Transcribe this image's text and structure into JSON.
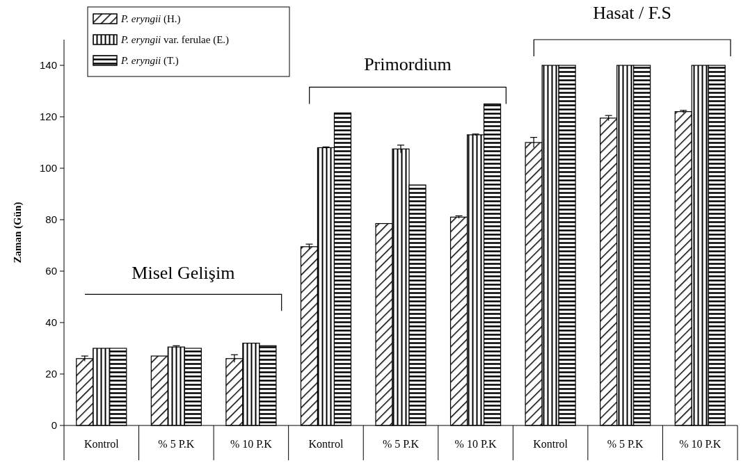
{
  "chart_data": {
    "type": "bar",
    "ylabel": "Zaman (Gün)",
    "categories": [
      "Kontrol",
      "% 5 P.K",
      "% 10 P.K",
      "Kontrol",
      "% 5 P.K",
      "% 10 P.K",
      "Kontrol",
      "% 5 P.K",
      "% 10 P.K"
    ],
    "series": [
      {
        "name": "P. eryngii (H.)",
        "color": "#000000",
        "values": [
          26,
          27,
          26,
          69.5,
          78.5,
          81,
          110,
          119.5,
          122
        ],
        "errors": [
          1,
          null,
          1.5,
          1,
          null,
          0.5,
          2,
          1,
          0.5
        ]
      },
      {
        "name": "P. eryngii var. ferulae (E.)",
        "color": "#000000",
        "values": [
          30,
          30.5,
          32,
          108,
          107.5,
          113,
          140,
          140,
          140
        ],
        "errors": [
          null,
          0.5,
          null,
          0.3,
          1.5,
          0.3,
          null,
          null,
          null
        ]
      },
      {
        "name": "P. eryngii (T.)",
        "color": "#000000",
        "values": [
          30,
          30,
          31,
          121.5,
          93.5,
          125,
          140,
          140,
          140
        ]
      }
    ],
    "ylim": [
      0,
      150
    ],
    "yticks": [
      0,
      20,
      40,
      60,
      80,
      100,
      120,
      140
    ],
    "grid": false,
    "legend": "top left",
    "annotations": [
      "Misel Gelişim",
      "Primordium",
      "Hasat / F.S"
    ]
  }
}
